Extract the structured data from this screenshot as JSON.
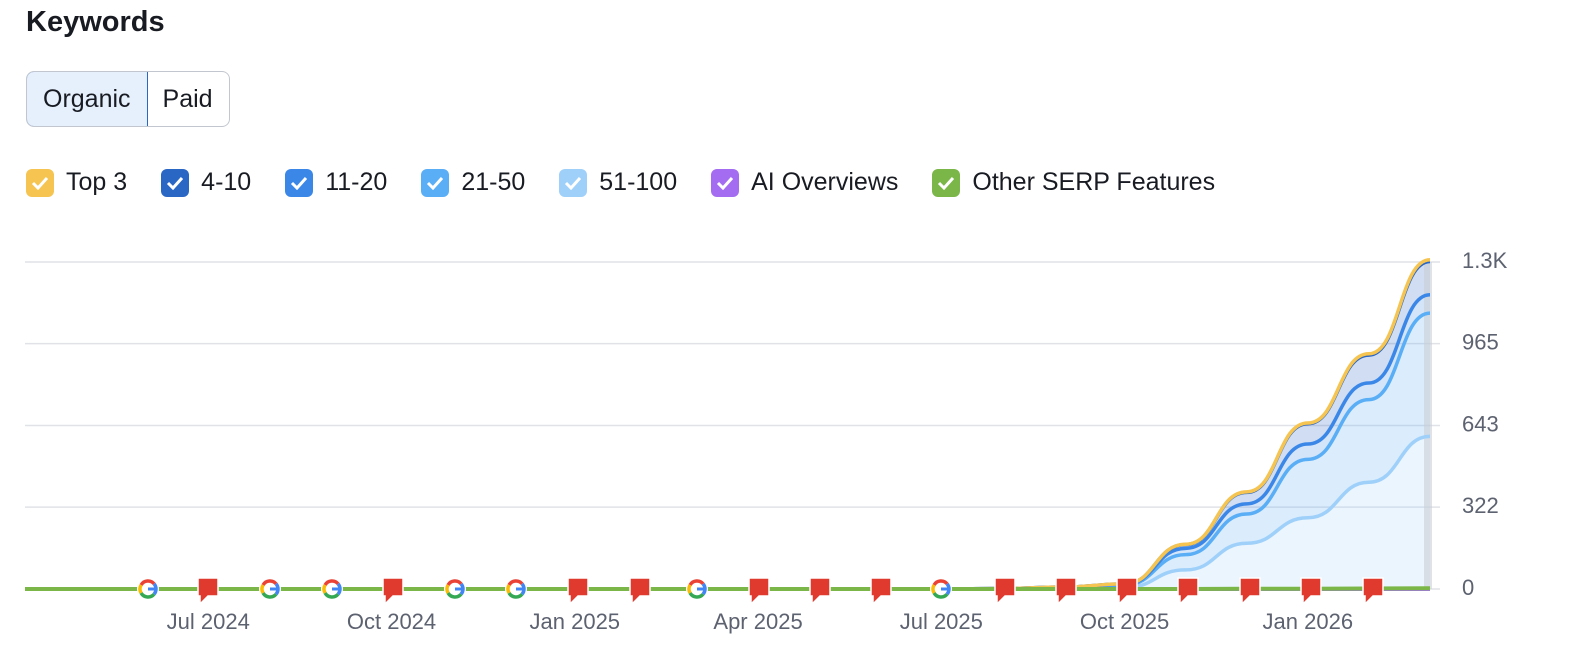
{
  "heading": "Keywords",
  "tabs": [
    "Organic",
    "Paid"
  ],
  "chart_data": {
    "type": "stacked-area",
    "categories": [
      null,
      null,
      null,
      "Jul 2024",
      null,
      null,
      "Oct 2024",
      null,
      null,
      "Jan 2025",
      null,
      null,
      "Apr 2025",
      null,
      null,
      "Jul 2025",
      null,
      null,
      "Oct 2025",
      null,
      null,
      "Jan 2026",
      null,
      null
    ],
    "series": [
      {
        "name": "51-100",
        "color": "#9fd0fa",
        "values": [
          0,
          0,
          0,
          0,
          0,
          0,
          0,
          0,
          0,
          0,
          0,
          0,
          0,
          0,
          0,
          0,
          1,
          3,
          5,
          75,
          180,
          280,
          420,
          600
        ]
      },
      {
        "name": "21-50",
        "color": "#5aaef5",
        "values": [
          0,
          0,
          0,
          0,
          0,
          0,
          0,
          0,
          0,
          0,
          0,
          0,
          0,
          0,
          0,
          0,
          1,
          4,
          10,
          60,
          115,
          230,
          325,
          485
        ]
      },
      {
        "name": "11-20",
        "color": "#3b87e8",
        "values": [
          0,
          0,
          0,
          0,
          0,
          0,
          0,
          0,
          0,
          0,
          0,
          0,
          0,
          0,
          0,
          0,
          0,
          1,
          3,
          25,
          40,
          60,
          65,
          72
        ]
      },
      {
        "name": "4-10",
        "color": "#2a66c4",
        "values": [
          0,
          0,
          0,
          0,
          0,
          0,
          0,
          0,
          0,
          0,
          0,
          0,
          0,
          0,
          0,
          0,
          0,
          0,
          2,
          15,
          45,
          80,
          110,
          131
        ]
      },
      {
        "name": "Top 3",
        "color": "#f5c451",
        "values": [
          0,
          0,
          0,
          0,
          0,
          0,
          0,
          0,
          0,
          0,
          0,
          0,
          0,
          0,
          0,
          0,
          0,
          0,
          0,
          1,
          2,
          3,
          5,
          7
        ]
      },
      {
        "name": "AI Overviews",
        "color": "#a46cf0",
        "stacked": false,
        "values": [
          0,
          0,
          0,
          0,
          0,
          0,
          0,
          0,
          0,
          0,
          0,
          0,
          0,
          0,
          0,
          0,
          0,
          0,
          0,
          0,
          0,
          0,
          0,
          0
        ]
      },
      {
        "name": "Other SERP Features",
        "color": "#7ab648",
        "stacked": false,
        "values": [
          0,
          0,
          0,
          0,
          0,
          0,
          0,
          0,
          0,
          0,
          0,
          0,
          0,
          0,
          0,
          0,
          0,
          0,
          0,
          0,
          1,
          1,
          2,
          3
        ]
      }
    ],
    "legend_order": [
      4,
      3,
      2,
      1,
      0,
      5,
      6
    ],
    "ylim": [
      0,
      1286
    ],
    "yticks": [
      0,
      322,
      643,
      965,
      {
        "value": 1286,
        "label": "1.3K"
      }
    ],
    "grid": true
  }
}
